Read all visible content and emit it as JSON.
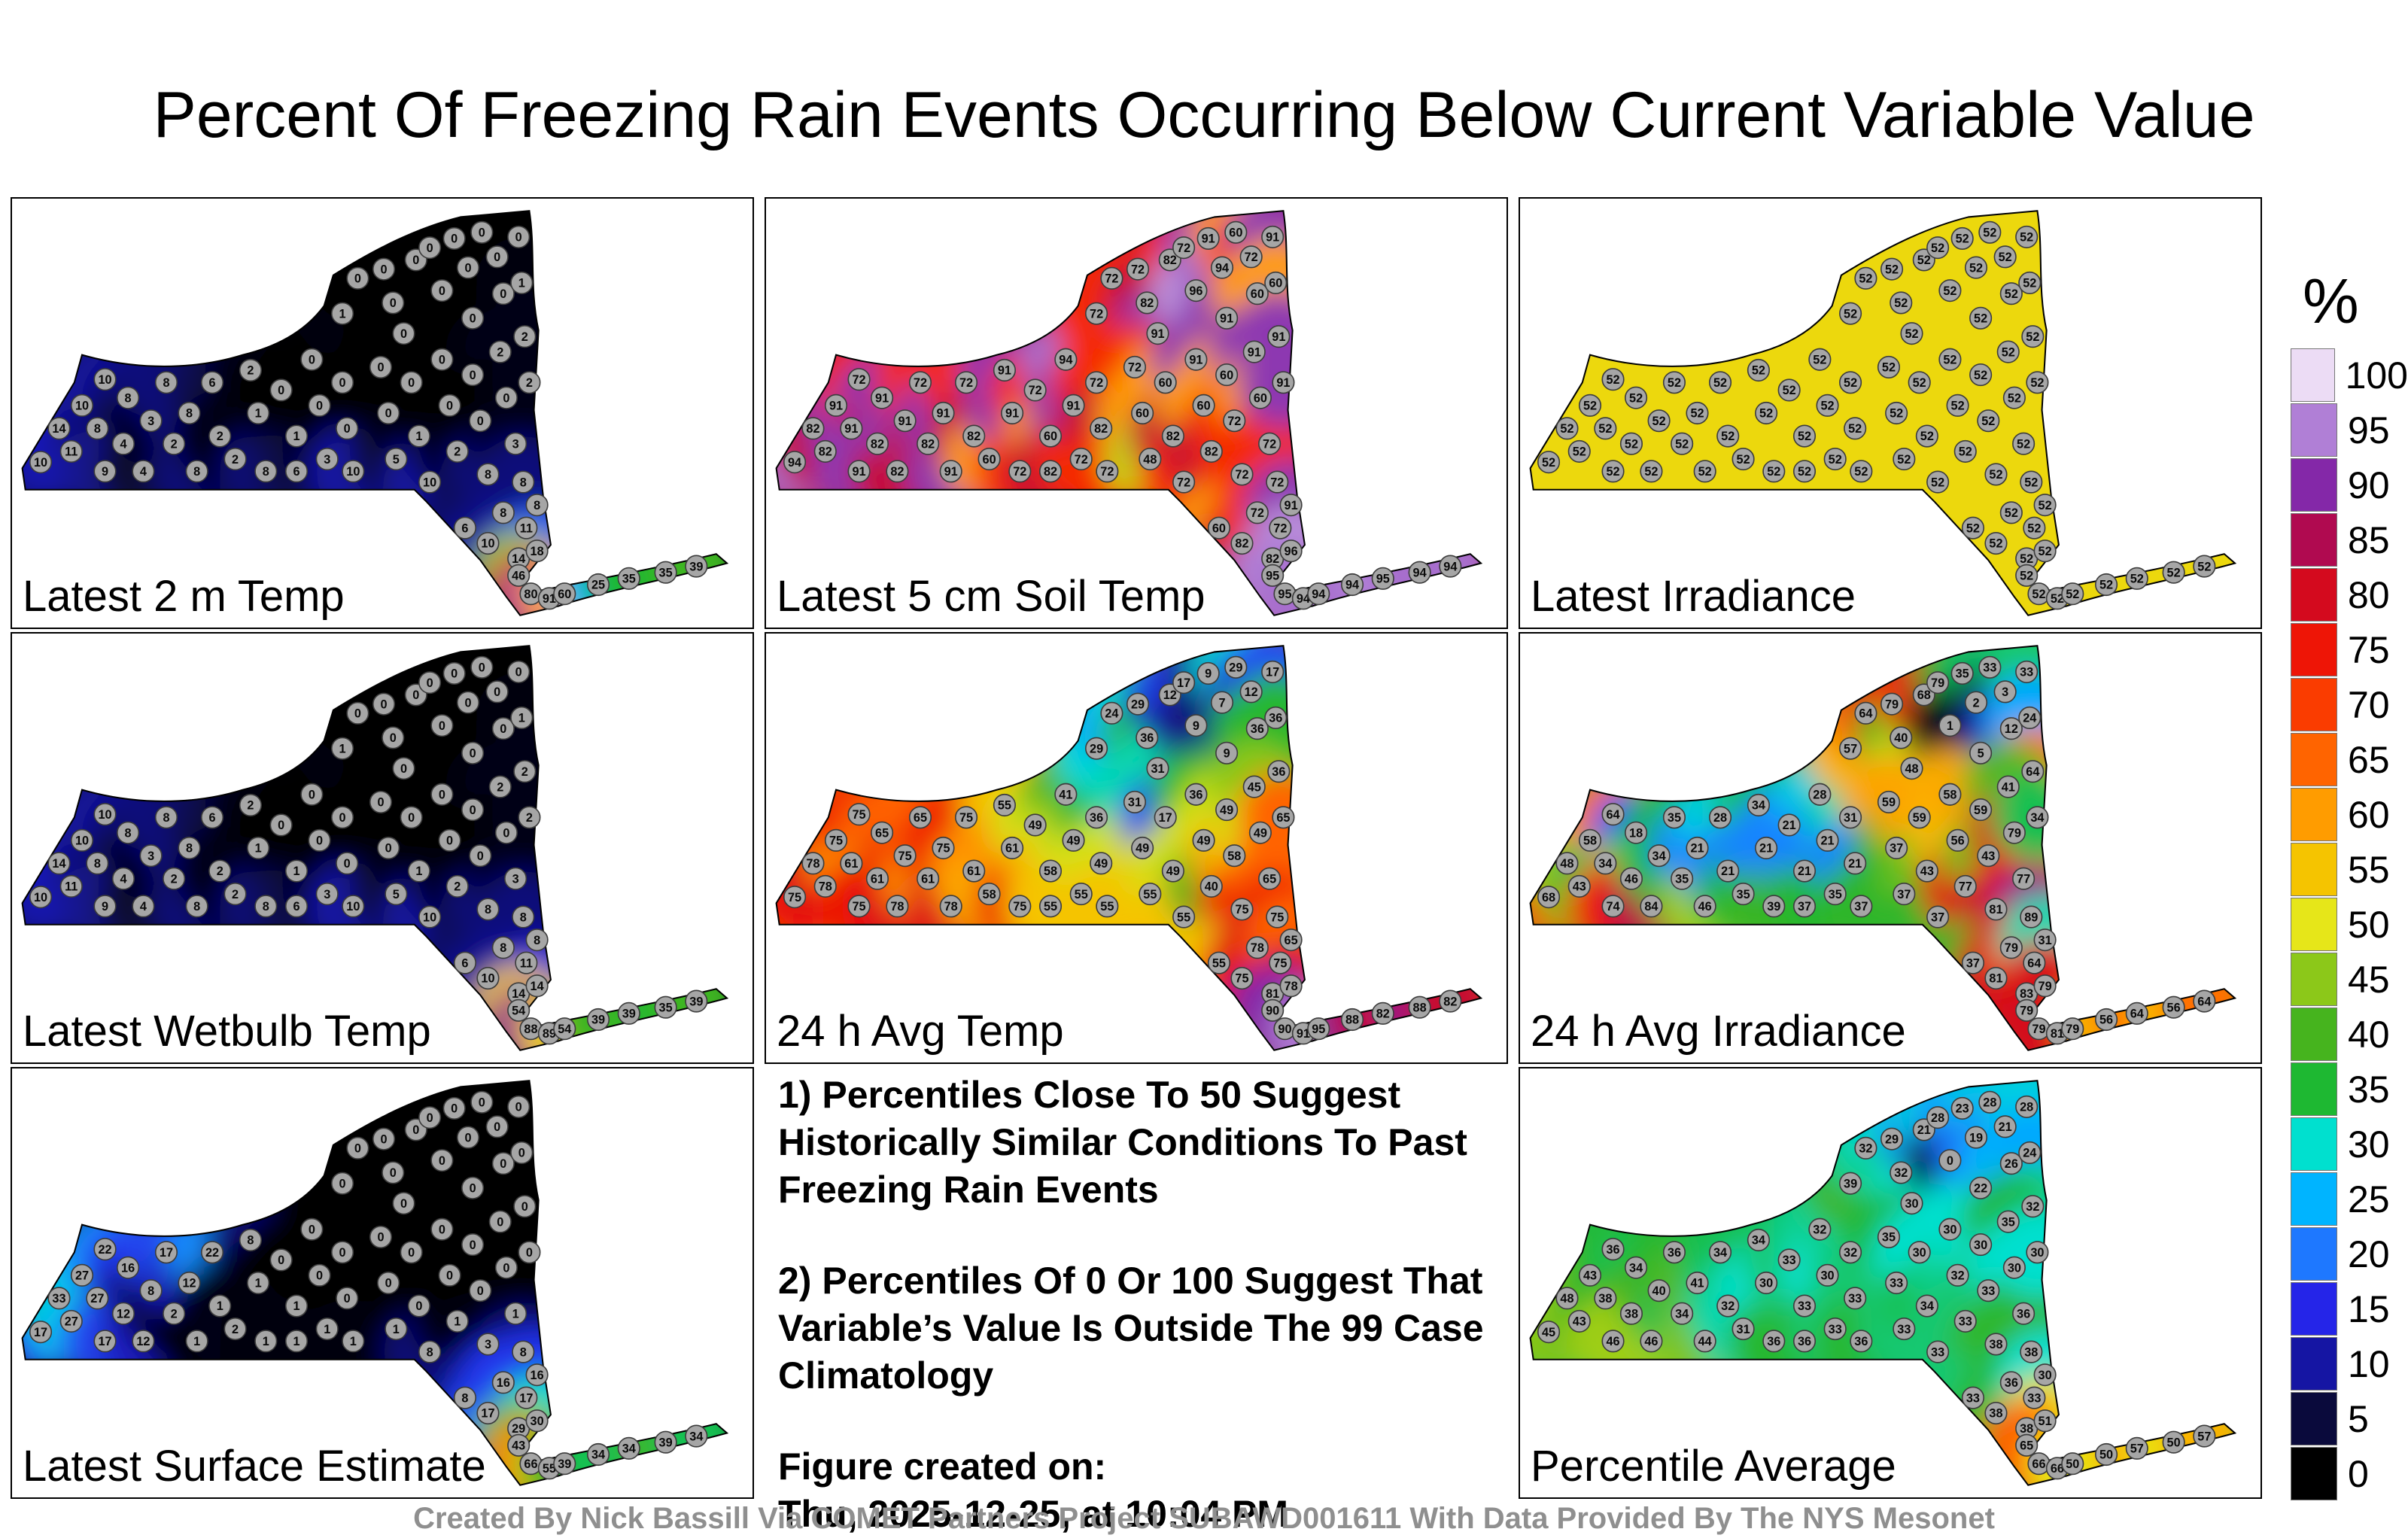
{
  "title": "Percent Of Freezing Rain Events Occurring Below Current Variable Value",
  "footer": "Created By Nick Bassill Via COMET Partners Project SUBAWD001611 With Data Provided By The NYS Mesonet",
  "notes": {
    "note1": "1) Percentiles Close To 50 Suggest Historically Similar Conditions To Past Freezing Rain Events",
    "note2": "2) Percentiles Of 0 Or 100 Suggest That Variable’s Value Is Outside The 99 Case Climatology",
    "created_label": "Figure created on:",
    "created_value": "Thu, 2025-12-25, at 10:04 PM"
  },
  "chart_data": {
    "type": "heatmap",
    "description": "Eight-panel grid of New York State station percentile maps with shared 0-100 colorbar; station values are percent of freezing rain events occurring below current variable value",
    "value_range": [
      0,
      100
    ],
    "colorbar": {
      "title": "%",
      "ticks": [
        100,
        95,
        90,
        85,
        80,
        75,
        70,
        65,
        60,
        55,
        50,
        45,
        40,
        35,
        30,
        25,
        20,
        15,
        10,
        5,
        0
      ],
      "stops": [
        [
          0,
          "#000000"
        ],
        [
          5,
          "#0a0a3c"
        ],
        [
          10,
          "#1515a3"
        ],
        [
          15,
          "#2525e8"
        ],
        [
          20,
          "#1e78ff"
        ],
        [
          25,
          "#00b4ff"
        ],
        [
          30,
          "#00e0cf"
        ],
        [
          35,
          "#1eb832"
        ],
        [
          40,
          "#46b41e"
        ],
        [
          45,
          "#8cc819"
        ],
        [
          50,
          "#e6e619"
        ],
        [
          55,
          "#f5c400"
        ],
        [
          60,
          "#ff9c00"
        ],
        [
          65,
          "#ff6400"
        ],
        [
          70,
          "#fa3c00"
        ],
        [
          75,
          "#ee1506"
        ],
        [
          80,
          "#d40a1e"
        ],
        [
          85,
          "#b00a50"
        ],
        [
          90,
          "#8428a8"
        ],
        [
          95,
          "#b07fd6"
        ],
        [
          100,
          "#ecdcf5"
        ]
      ]
    },
    "stations": [
      [
        18,
        172
      ],
      [
        30,
        150
      ],
      [
        45,
        135
      ],
      [
        38,
        165
      ],
      [
        55,
        150
      ],
      [
        60,
        118
      ],
      [
        75,
        130
      ],
      [
        72,
        160
      ],
      [
        60,
        178
      ],
      [
        85,
        178
      ],
      [
        90,
        145
      ],
      [
        100,
        120
      ],
      [
        105,
        160
      ],
      [
        115,
        140
      ],
      [
        120,
        178
      ],
      [
        130,
        120
      ],
      [
        135,
        155
      ],
      [
        145,
        170
      ],
      [
        155,
        112
      ],
      [
        160,
        140
      ],
      [
        165,
        178
      ],
      [
        175,
        125
      ],
      [
        185,
        155
      ],
      [
        185,
        178
      ],
      [
        195,
        105
      ],
      [
        200,
        135
      ],
      [
        205,
        170
      ],
      [
        215,
        120
      ],
      [
        218,
        150
      ],
      [
        222,
        178
      ],
      [
        215,
        75
      ],
      [
        225,
        52
      ],
      [
        242,
        46
      ],
      [
        248,
        68
      ],
      [
        255,
        88
      ],
      [
        263,
        40
      ],
      [
        272,
        32
      ],
      [
        280,
        60
      ],
      [
        288,
        26
      ],
      [
        297,
        45
      ],
      [
        300,
        78
      ],
      [
        306,
        22
      ],
      [
        316,
        38
      ],
      [
        320,
        62
      ],
      [
        330,
        25
      ],
      [
        332,
        55
      ],
      [
        334,
        90
      ],
      [
        240,
        110
      ],
      [
        245,
        140
      ],
      [
        250,
        170
      ],
      [
        260,
        120
      ],
      [
        265,
        155
      ],
      [
        272,
        185
      ],
      [
        280,
        105
      ],
      [
        285,
        135
      ],
      [
        290,
        165
      ],
      [
        300,
        115
      ],
      [
        305,
        145
      ],
      [
        310,
        180
      ],
      [
        318,
        100
      ],
      [
        322,
        130
      ],
      [
        328,
        160
      ],
      [
        333,
        185
      ],
      [
        337,
        120
      ],
      [
        295,
        215
      ],
      [
        310,
        225
      ],
      [
        320,
        205
      ],
      [
        330,
        235
      ],
      [
        335,
        215
      ],
      [
        342,
        200
      ],
      [
        342,
        230
      ],
      [
        330,
        246
      ],
      [
        338,
        258
      ],
      [
        350,
        261
      ],
      [
        360,
        258
      ],
      [
        382,
        252
      ],
      [
        402,
        248
      ],
      [
        426,
        244
      ],
      [
        446,
        240
      ]
    ],
    "panels": [
      {
        "label": "Latest 2 m Temp",
        "cell": [
          0,
          0
        ],
        "values": [
          10,
          14,
          10,
          11,
          8,
          10,
          8,
          4,
          9,
          4,
          3,
          8,
          2,
          8,
          8,
          6,
          2,
          2,
          2,
          1,
          8,
          0,
          1,
          6,
          0,
          0,
          3,
          0,
          0,
          10,
          1,
          0,
          0,
          0,
          0,
          0,
          0,
          0,
          0,
          0,
          0,
          0,
          0,
          0,
          0,
          1,
          2,
          0,
          0,
          5,
          0,
          1,
          10,
          0,
          0,
          2,
          0,
          0,
          8,
          2,
          0,
          3,
          8,
          2,
          6,
          10,
          8,
          14,
          11,
          8,
          18,
          46,
          80,
          91,
          60,
          25,
          35,
          35,
          39
        ]
      },
      {
        "label": "Latest 5 cm Soil Temp",
        "cell": [
          0,
          1
        ],
        "values": [
          94,
          82,
          91,
          82,
          91,
          72,
          91,
          82,
          91,
          82,
          91,
          72,
          82,
          91,
          91,
          72,
          82,
          60,
          91,
          91,
          72,
          72,
          60,
          82,
          94,
          91,
          72,
          72,
          82,
          72,
          72,
          72,
          72,
          82,
          91,
          82,
          72,
          96,
          91,
          94,
          91,
          60,
          72,
          60,
          91,
          60,
          91,
          72,
          60,
          48,
          60,
          82,
          72,
          91,
          60,
          82,
          60,
          72,
          72,
          91,
          60,
          72,
          72,
          91,
          60,
          82,
          72,
          82,
          72,
          91,
          96,
          95,
          95,
          94,
          94,
          94,
          95,
          94,
          94
        ]
      },
      {
        "label": "Latest Irradiance",
        "cell": [
          0,
          2
        ],
        "values": [
          52,
          52,
          52,
          52,
          52,
          52,
          52,
          52,
          52,
          52,
          52,
          52,
          52,
          52,
          52,
          52,
          52,
          52,
          52,
          52,
          52,
          52,
          52,
          52,
          52,
          52,
          52,
          52,
          52,
          52,
          52,
          52,
          52,
          52,
          52,
          52,
          52,
          52,
          52,
          52,
          52,
          52,
          52,
          52,
          52,
          52,
          52,
          52,
          52,
          52,
          52,
          52,
          52,
          52,
          52,
          52,
          52,
          52,
          52,
          52,
          52,
          52,
          52,
          52,
          52,
          52,
          52,
          52,
          52,
          52,
          52,
          52,
          52,
          52,
          52,
          52,
          52,
          52,
          52
        ]
      },
      {
        "label": "Latest Wetbulb Temp",
        "cell": [
          1,
          0
        ],
        "values": [
          10,
          14,
          10,
          11,
          8,
          10,
          8,
          4,
          9,
          4,
          3,
          8,
          2,
          8,
          8,
          6,
          2,
          2,
          2,
          1,
          8,
          0,
          1,
          6,
          0,
          0,
          3,
          0,
          0,
          10,
          1,
          0,
          0,
          0,
          0,
          0,
          0,
          0,
          0,
          0,
          0,
          0,
          0,
          0,
          0,
          1,
          2,
          0,
          0,
          5,
          0,
          1,
          10,
          0,
          0,
          2,
          0,
          0,
          8,
          2,
          0,
          3,
          8,
          2,
          6,
          10,
          8,
          14,
          11,
          8,
          14,
          54,
          88,
          89,
          54,
          39,
          39,
          35,
          39
        ]
      },
      {
        "label": "24 h Avg Temp",
        "cell": [
          1,
          1
        ],
        "values": [
          75,
          78,
          75,
          78,
          61,
          75,
          65,
          61,
          75,
          78,
          75,
          65,
          61,
          75,
          78,
          75,
          61,
          58,
          55,
          61,
          75,
          49,
          58,
          55,
          41,
          49,
          55,
          36,
          49,
          55,
          29,
          24,
          29,
          36,
          31,
          12,
          17,
          9,
          9,
          7,
          9,
          29,
          12,
          36,
          17,
          36,
          36,
          31,
          49,
          55,
          17,
          49,
          55,
          36,
          49,
          40,
          49,
          58,
          75,
          45,
          49,
          65,
          75,
          65,
          55,
          75,
          78,
          81,
          75,
          65,
          78,
          90,
          90,
          91,
          95,
          88,
          82,
          88,
          82
        ]
      },
      {
        "label": "24 h Avg Irradiance",
        "cell": [
          1,
          2
        ],
        "values": [
          68,
          48,
          58,
          43,
          34,
          64,
          18,
          46,
          74,
          84,
          34,
          35,
          35,
          21,
          46,
          28,
          21,
          35,
          34,
          21,
          39,
          21,
          21,
          37,
          28,
          21,
          35,
          31,
          21,
          37,
          57,
          64,
          79,
          40,
          48,
          68,
          79,
          1,
          35,
          2,
          5,
          33,
          3,
          12,
          33,
          24,
          64,
          59,
          37,
          37,
          59,
          43,
          37,
          58,
          56,
          77,
          59,
          43,
          81,
          41,
          79,
          77,
          89,
          34,
          37,
          81,
          79,
          83,
          64,
          31,
          79,
          79,
          79,
          81,
          79,
          56,
          64,
          56,
          64
        ]
      },
      {
        "label": "Latest Surface Estimate",
        "cell": [
          2,
          0
        ],
        "values": [
          17,
          33,
          27,
          27,
          27,
          22,
          16,
          12,
          17,
          12,
          8,
          17,
          2,
          12,
          1,
          22,
          1,
          2,
          8,
          1,
          1,
          0,
          1,
          1,
          0,
          0,
          1,
          0,
          0,
          1,
          0,
          0,
          0,
          0,
          0,
          0,
          0,
          0,
          0,
          0,
          0,
          0,
          0,
          0,
          0,
          0,
          0,
          0,
          0,
          1,
          0,
          0,
          8,
          0,
          0,
          1,
          0,
          0,
          3,
          0,
          0,
          1,
          8,
          0,
          8,
          17,
          16,
          29,
          17,
          16,
          30,
          43,
          66,
          55,
          39,
          34,
          34,
          39,
          34
        ]
      },
      {
        "label": "Percentile Average",
        "cell": [
          2,
          2
        ],
        "values": [
          45,
          48,
          43,
          43,
          38,
          36,
          34,
          38,
          46,
          46,
          40,
          36,
          34,
          41,
          44,
          34,
          32,
          31,
          34,
          30,
          36,
          33,
          33,
          36,
          32,
          30,
          33,
          32,
          33,
          36,
          39,
          32,
          29,
          32,
          30,
          21,
          28,
          0,
          23,
          19,
          22,
          28,
          21,
          26,
          28,
          24,
          32,
          35,
          33,
          33,
          30,
          34,
          33,
          30,
          32,
          33,
          30,
          33,
          38,
          35,
          30,
          36,
          38,
          30,
          33,
          38,
          36,
          38,
          33,
          30,
          51,
          65,
          66,
          66,
          50,
          50,
          57,
          50,
          57
        ]
      }
    ]
  }
}
